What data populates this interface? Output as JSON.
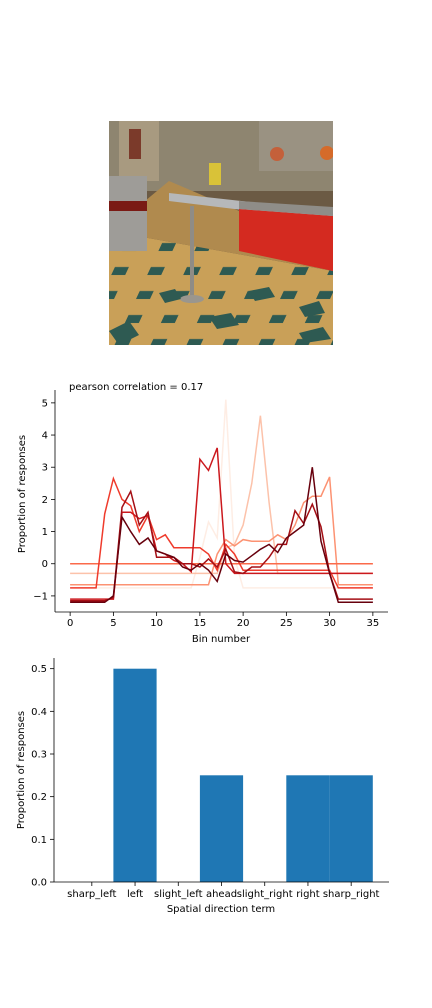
{
  "photo": {
    "description_icon": "cafeteria-scene-photo"
  },
  "chart_data": [
    {
      "type": "line",
      "title": "pearson correlation = 0.17",
      "xlabel": "Bin number",
      "ylabel": "Proportion of responses",
      "xlim": [
        -1.75,
        36.75
      ],
      "ylim": [
        -1.5,
        5.4
      ],
      "xticks": [
        0,
        5,
        10,
        15,
        20,
        25,
        30,
        35
      ],
      "yticks": [
        -1,
        0,
        1,
        2,
        3,
        4,
        5
      ],
      "grid": false,
      "series": [
        {
          "color": "#fee5d9",
          "alpha": 0.7,
          "values": [
            -0.75,
            -0.75,
            -0.75,
            -0.75,
            -0.75,
            -0.75,
            -0.75,
            -0.75,
            -0.75,
            -0.75,
            -0.75,
            -0.75,
            -0.75,
            -0.75,
            -0.75,
            0.2,
            1.3,
            0.8,
            5.1,
            0.2,
            -0.75,
            -0.75,
            -0.75,
            -0.75,
            -0.75,
            -0.75,
            -0.75,
            -0.75,
            -0.75,
            -0.75,
            -0.75,
            -0.75,
            -0.75,
            -0.75,
            -0.75,
            -0.75
          ]
        },
        {
          "color": "#fcbba1",
          "alpha": 0.9,
          "values": [
            -0.3,
            -0.3,
            -0.3,
            -0.3,
            -0.3,
            -0.3,
            -0.3,
            -0.3,
            -0.3,
            -0.3,
            -0.3,
            -0.3,
            -0.3,
            -0.3,
            -0.3,
            -0.3,
            -0.3,
            -0.3,
            0.5,
            0.6,
            1.2,
            2.5,
            4.6,
            1.9,
            -0.3,
            -0.3,
            -0.3,
            -0.3,
            -0.3,
            -0.3,
            -0.3,
            -0.3,
            -0.3,
            -0.3,
            -0.3,
            -0.3
          ]
        },
        {
          "color": "#fc9272",
          "alpha": 1,
          "values": [
            -0.65,
            -0.65,
            -0.65,
            -0.65,
            -0.65,
            -0.65,
            -0.65,
            -0.65,
            -0.65,
            -0.65,
            -0.65,
            -0.65,
            -0.65,
            -0.65,
            -0.65,
            -0.65,
            -0.65,
            0.3,
            0.75,
            0.55,
            0.75,
            0.7,
            0.7,
            0.7,
            0.9,
            0.75,
            1.2,
            1.9,
            2.1,
            2.1,
            2.7,
            -0.65,
            -0.65,
            -0.65,
            -0.65,
            -0.65
          ]
        },
        {
          "color": "#fb6a4a",
          "alpha": 1,
          "values": [
            0,
            0,
            0,
            0,
            0,
            0,
            0,
            0,
            0,
            0,
            0,
            0,
            0,
            0,
            0,
            0,
            0,
            0,
            0,
            0,
            0,
            0,
            0,
            0,
            0,
            0,
            0,
            0,
            0,
            0,
            0,
            0,
            0,
            0,
            0,
            0
          ]
        },
        {
          "color": "#ef3b2c",
          "alpha": 1,
          "values": [
            -0.75,
            -0.75,
            -0.75,
            -0.75,
            1.55,
            2.65,
            2.0,
            1.8,
            1.0,
            1.5,
            0.75,
            0.9,
            0.5,
            0.5,
            0.5,
            0.5,
            0.3,
            -0.2,
            0.6,
            0.3,
            -0.2,
            -0.2,
            -0.2,
            -0.2,
            -0.2,
            -0.2,
            -0.2,
            -0.2,
            -0.2,
            -0.2,
            -0.2,
            -0.75,
            -0.75,
            -0.75,
            -0.75,
            -0.75
          ]
        },
        {
          "color": "#cb181d",
          "alpha": 1,
          "values": [
            -1.1,
            -1.1,
            -1.1,
            -1.1,
            -1.1,
            -1.1,
            1.6,
            1.6,
            1.4,
            1.5,
            0.4,
            0.3,
            0.1,
            0.0,
            -0.25,
            3.25,
            2.9,
            3.6,
            0.0,
            -0.3,
            -0.3,
            -0.3,
            -0.3,
            -0.3,
            -0.3,
            -0.3,
            -0.3,
            -0.3,
            -0.3,
            -0.3,
            -0.3,
            -0.3,
            -0.3,
            -0.3,
            -0.3,
            -0.3
          ]
        },
        {
          "color": "#a50f15",
          "alpha": 1,
          "values": [
            -1.15,
            -1.15,
            -1.15,
            -1.15,
            -1.15,
            -1.05,
            1.75,
            2.25,
            1.2,
            1.6,
            0.2,
            0.2,
            0.2,
            0.0,
            0.0,
            -0.1,
            0.15,
            -0.1,
            0.45,
            -0.25,
            -0.3,
            -0.1,
            -0.1,
            0.2,
            0.6,
            0.6,
            1.65,
            1.25,
            1.85,
            1.15,
            -0.3,
            -1.1,
            -1.1,
            -1.1,
            -1.1,
            -1.1
          ]
        },
        {
          "color": "#67000d",
          "alpha": 1,
          "values": [
            -1.2,
            -1.2,
            -1.2,
            -1.2,
            -1.2,
            -1.0,
            1.45,
            1.0,
            0.6,
            0.8,
            0.4,
            0.3,
            0.2,
            -0.1,
            -0.2,
            0.0,
            -0.2,
            -0.55,
            0.3,
            0.1,
            0.05,
            0.25,
            0.45,
            0.6,
            0.35,
            0.8,
            1.0,
            1.2,
            3.0,
            0.7,
            -0.3,
            -1.2,
            -1.2,
            -1.2,
            -1.2,
            -1.2
          ]
        }
      ]
    },
    {
      "type": "bar",
      "xlabel": "Spatial direction term",
      "ylabel": "Proportion of responses",
      "categories": [
        "sharp_left",
        "left",
        "slight_left",
        "ahead",
        "slight_right",
        "right",
        "sharp_right"
      ],
      "values": [
        0.0,
        0.5,
        0.0,
        0.25,
        0.0,
        0.25,
        0.25
      ],
      "ylim": [
        0,
        0.525
      ],
      "yticks": [
        "0.0",
        "0.1",
        "0.2",
        "0.3",
        "0.4",
        "0.5"
      ],
      "color": "#1f77b4",
      "grid": false
    }
  ]
}
